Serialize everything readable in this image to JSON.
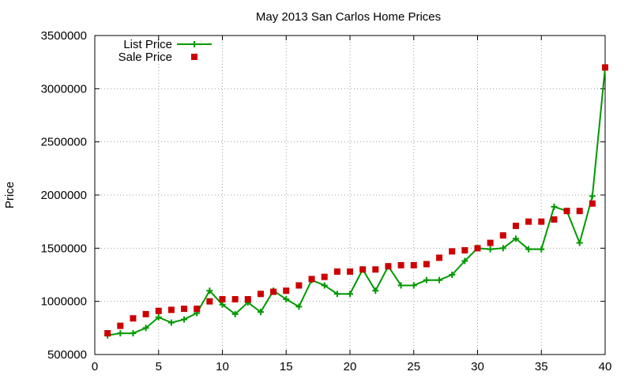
{
  "chart_data": {
    "type": "line",
    "title": "May 2013 San Carlos Home Prices",
    "xlabel": "",
    "ylabel": "Price",
    "xlim": [
      0,
      40
    ],
    "ylim": [
      500000,
      3500000
    ],
    "x_ticks": [
      0,
      5,
      10,
      15,
      20,
      25,
      30,
      35,
      40
    ],
    "y_ticks": [
      500000,
      1000000,
      1500000,
      2000000,
      2500000,
      3000000,
      3500000
    ],
    "grid": true,
    "legend_position": "top-left",
    "x": [
      1,
      2,
      3,
      4,
      5,
      6,
      7,
      8,
      9,
      10,
      11,
      12,
      13,
      14,
      15,
      16,
      17,
      18,
      19,
      20,
      21,
      22,
      23,
      24,
      25,
      26,
      27,
      28,
      29,
      30,
      31,
      32,
      33,
      34,
      35,
      36,
      37,
      38,
      39,
      40
    ],
    "series": [
      {
        "name": "List Price",
        "color": "#009900",
        "marker": "plus",
        "style": "line",
        "values": [
          680000,
          700000,
          700000,
          750000,
          850000,
          800000,
          830000,
          890000,
          1100000,
          970000,
          880000,
          990000,
          900000,
          1100000,
          1020000,
          950000,
          1200000,
          1150000,
          1070000,
          1070000,
          1300000,
          1100000,
          1330000,
          1150000,
          1150000,
          1200000,
          1200000,
          1250000,
          1380000,
          1500000,
          1490000,
          1500000,
          1590000,
          1490000,
          1490000,
          1890000,
          1850000,
          1550000,
          1990000,
          3200000
        ]
      },
      {
        "name": "Sale Price",
        "color": "#cc0000",
        "marker": "square",
        "style": "points",
        "values": [
          700000,
          770000,
          840000,
          880000,
          910000,
          920000,
          930000,
          930000,
          1000000,
          1020000,
          1020000,
          1020000,
          1070000,
          1090000,
          1100000,
          1150000,
          1210000,
          1230000,
          1280000,
          1280000,
          1300000,
          1300000,
          1330000,
          1340000,
          1340000,
          1350000,
          1410000,
          1470000,
          1480000,
          1500000,
          1550000,
          1620000,
          1710000,
          1750000,
          1750000,
          1770000,
          1850000,
          1850000,
          1920000,
          3200000
        ]
      }
    ]
  }
}
